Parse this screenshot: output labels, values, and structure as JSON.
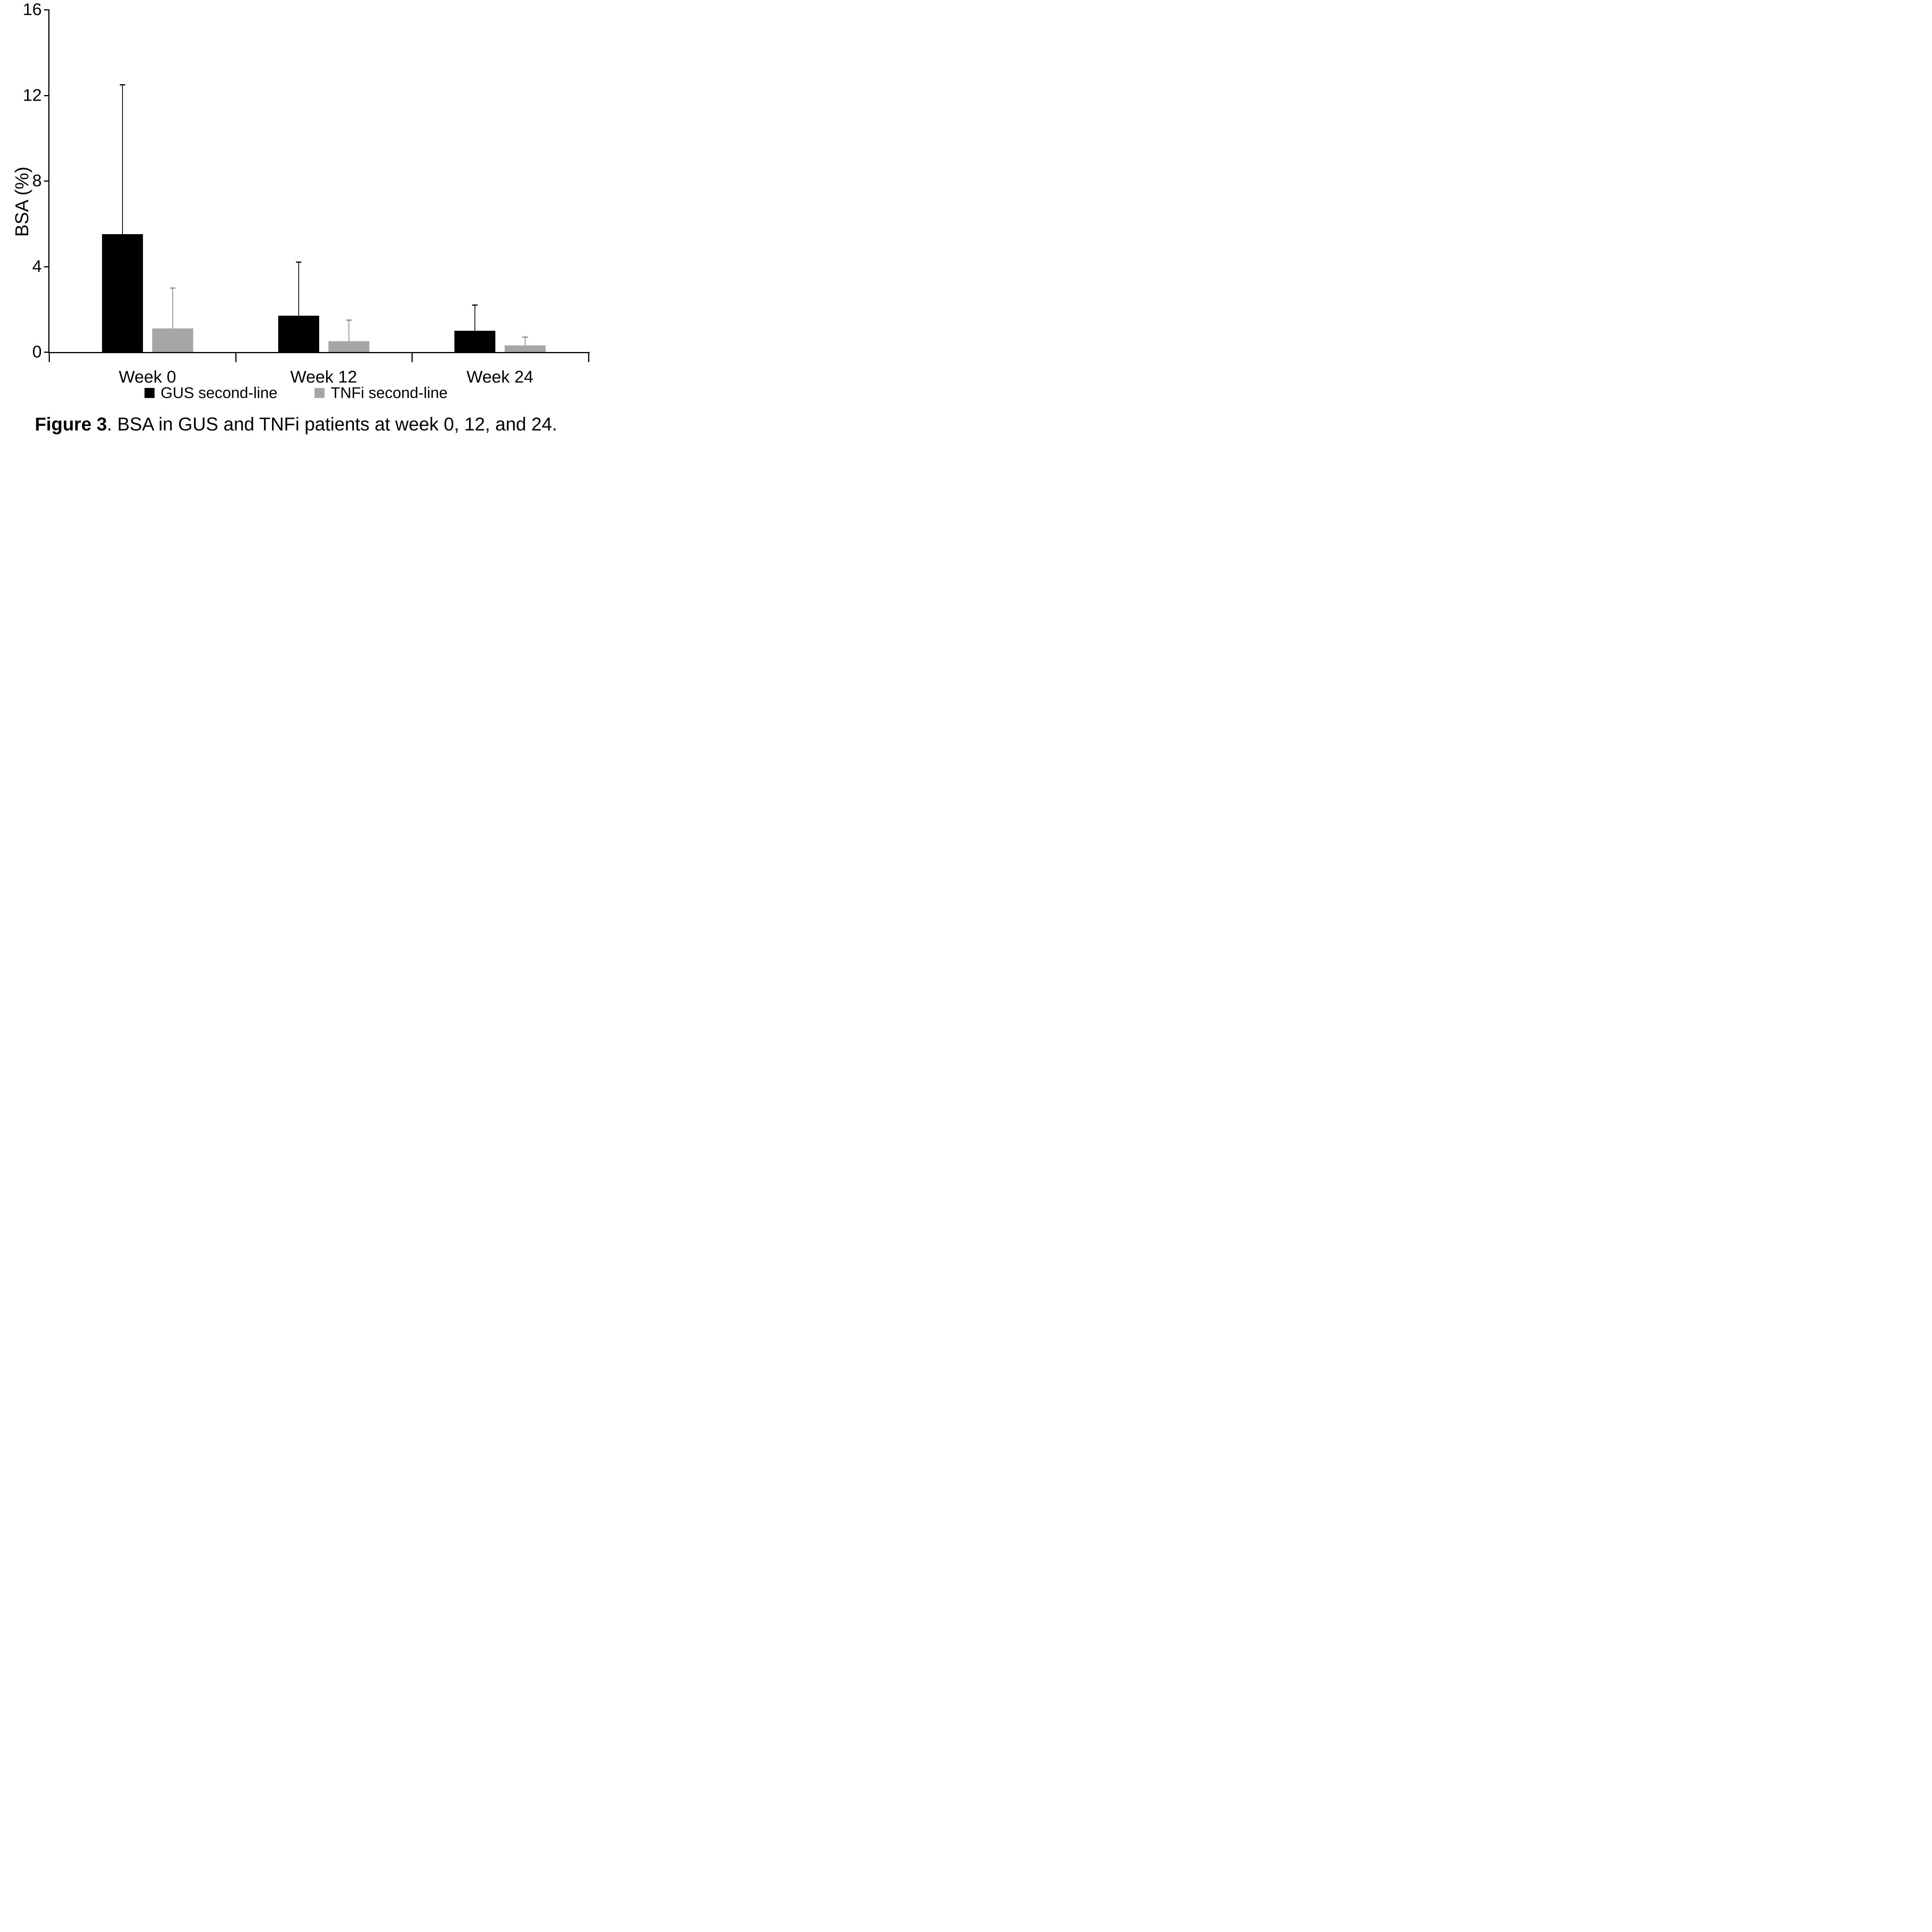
{
  "chart_data": {
    "type": "bar",
    "title": "",
    "xlabel": "",
    "ylabel": "BSA (%)",
    "categories": [
      "Week 0",
      "Week 12",
      "Week 24"
    ],
    "series": [
      {
        "name": "GUS second-line",
        "color": "#000000",
        "error_color": "#000000",
        "values": [
          5.5,
          1.7,
          1.0
        ],
        "sd_upper": [
          7.0,
          2.5,
          1.2
        ],
        "error_bar_tops": [
          12.5,
          4.2,
          2.2
        ]
      },
      {
        "name": "TNFi second-line",
        "color": "#a6a6a6",
        "error_color": "#898989",
        "values": [
          1.1,
          0.5,
          0.3
        ],
        "sd_upper": [
          1.9,
          1.0,
          0.4
        ],
        "error_bar_tops": [
          3.0,
          1.5,
          0.7
        ]
      }
    ],
    "y_ticks": [
      0,
      4,
      8,
      12,
      16
    ],
    "ylim": [
      0,
      16
    ],
    "grid": false,
    "error_bars": "upper-only",
    "legend_position": "bottom"
  },
  "caption": {
    "bold": "Figure 3",
    "rest": ". BSA in GUS and TNFi patients at week 0, 12, and 24."
  }
}
